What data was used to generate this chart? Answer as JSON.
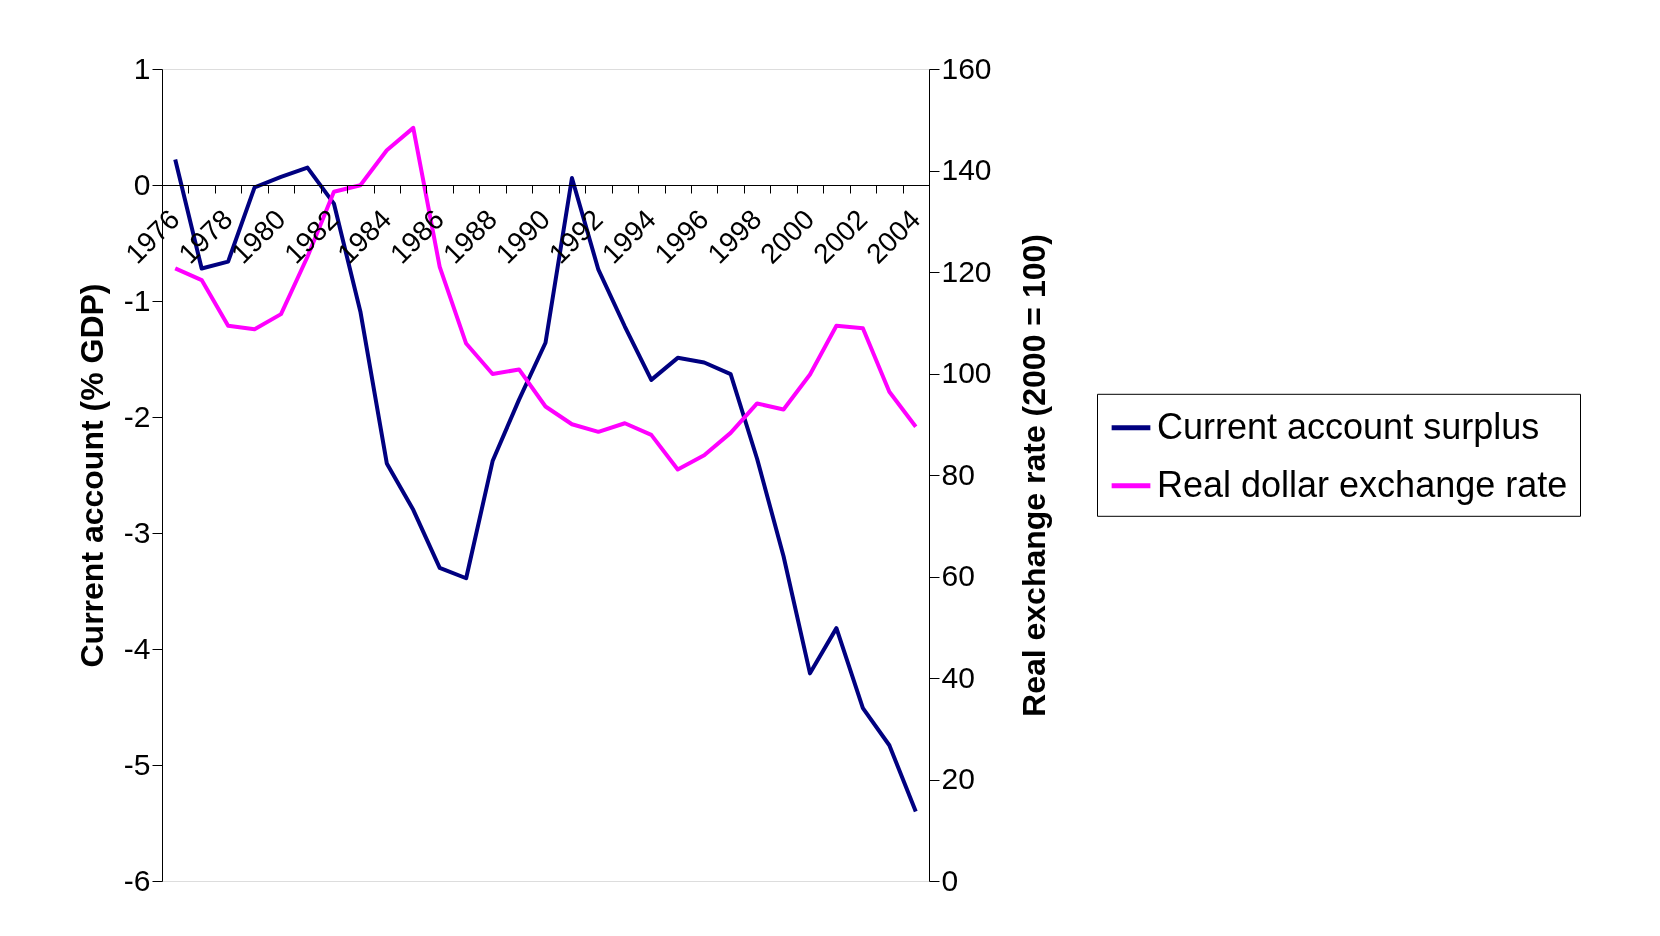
{
  "chart_data": {
    "type": "line",
    "ylabel": "Current account (% GDP)",
    "y2label": "Real exchange rate (2000 = 100)",
    "categories": [
      "1976",
      null,
      "1978",
      null,
      "1980",
      null,
      "1982",
      null,
      "1984",
      null,
      "1986",
      null,
      "1988",
      null,
      "1990",
      null,
      "1992",
      null,
      "1994",
      null,
      "1996",
      null,
      "1998",
      null,
      "2000",
      null,
      "2002",
      null,
      "2004"
    ],
    "series": [
      {
        "name": "Current account surplus",
        "color": "#000080",
        "values": [
          0.22,
          -0.72,
          -0.66,
          -0.02,
          0.07,
          0.15,
          -0.16,
          -1.09,
          -2.4,
          -2.8,
          -3.3,
          -3.39,
          -2.38,
          -1.85,
          -1.36,
          0.06,
          -0.73,
          -1.22,
          -1.68,
          -1.49,
          -1.53,
          -1.63,
          -2.36,
          -3.2,
          -4.21,
          -3.82,
          -4.51,
          -4.83,
          -5.4
        ]
      },
      {
        "name": "Real dollar exchange rate",
        "color": "#ff00ff",
        "axis": "y2",
        "values": [
          120.7,
          118.4,
          109.4,
          108.7,
          111.7,
          123.0,
          135.8,
          137.1,
          144.0,
          148.4,
          121.0,
          105.9,
          99.9,
          100.8,
          93.5,
          90.0,
          88.5,
          90.2,
          87.9,
          81.1,
          83.9,
          88.3,
          94.1,
          92.9,
          99.8,
          109.4,
          108.9,
          96.4,
          89.5
        ]
      }
    ],
    "ylim": [
      -6,
      1
    ],
    "yticks": [
      -6,
      -5,
      -4,
      -3,
      -2,
      -1,
      0,
      1
    ],
    "y2lim": [
      0,
      160
    ],
    "y2ticks": [
      0,
      20,
      40,
      60,
      80,
      100,
      120,
      140,
      160
    ],
    "grid": false,
    "legend": "right",
    "line_style": "solid",
    "marker": "none"
  }
}
